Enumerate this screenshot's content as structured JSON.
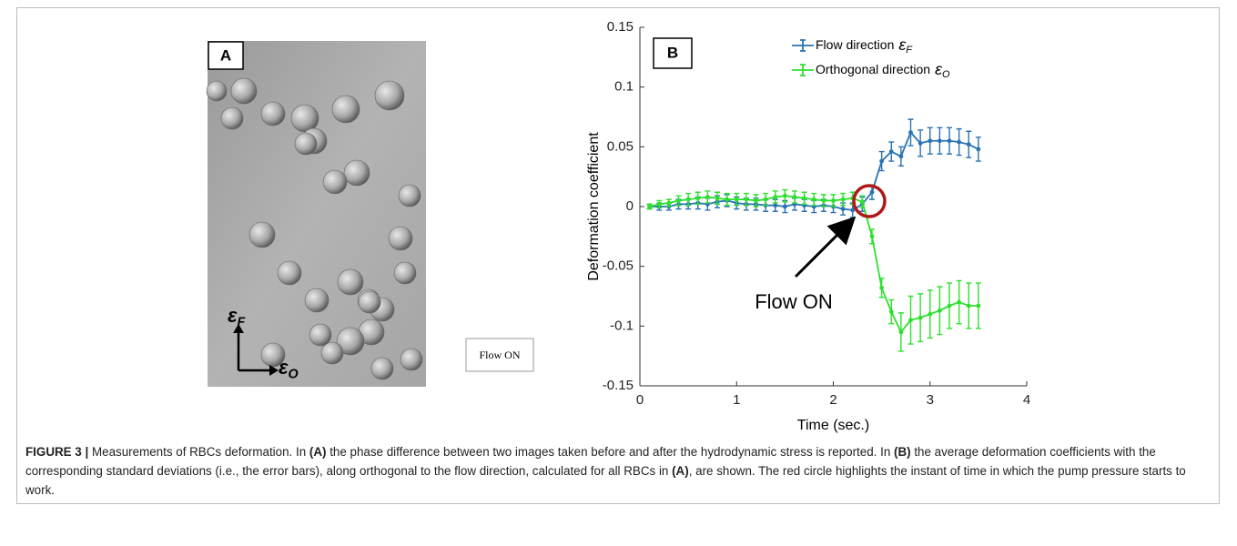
{
  "panel_a": {
    "label": "A",
    "annotation": "Flow ON",
    "axis_f": {
      "symbol": "ε",
      "subscript": "F"
    },
    "axis_o": {
      "symbol": "ε",
      "subscript": "O"
    }
  },
  "chart_data": {
    "type": "errorbar",
    "label": "B",
    "xlabel": "Time (sec.)",
    "ylabel": "Deformation coefficient",
    "xlim": [
      0,
      4
    ],
    "xticks": [
      0,
      1,
      2,
      3,
      4
    ],
    "ylim": [
      -0.15,
      0.15
    ],
    "yticks": [
      -0.15,
      -0.1,
      -0.05,
      0,
      0.05,
      0.1,
      0.15
    ],
    "legend": "top-right",
    "annotation": "Flow ON",
    "x": [
      0.1,
      0.2,
      0.3,
      0.4,
      0.5,
      0.6,
      0.7,
      0.8,
      0.9,
      1.0,
      1.1,
      1.2,
      1.3,
      1.4,
      1.5,
      1.6,
      1.7,
      1.8,
      1.9,
      2.0,
      2.1,
      2.2,
      2.3,
      2.4,
      2.5,
      2.6,
      2.7,
      2.8,
      2.9,
      3.0,
      3.1,
      3.2,
      3.3,
      3.4,
      3.5
    ],
    "series": [
      {
        "name": "Flow direction",
        "symbol": "ε",
        "subscript": "F",
        "color": "#2a72b5",
        "values": [
          0,
          0,
          0,
          0.002,
          0.002,
          0.003,
          0.002,
          0.004,
          0.005,
          0.003,
          0.002,
          0.002,
          0.001,
          0.001,
          0,
          0.002,
          0.001,
          0,
          0.001,
          0,
          -0.002,
          -0.003,
          0.002,
          0.012,
          0.038,
          0.046,
          0.042,
          0.062,
          0.053,
          0.055,
          0.055,
          0.055,
          0.054,
          0.052,
          0.048
        ],
        "errors": [
          0.002,
          0.003,
          0.003,
          0.004,
          0.004,
          0.005,
          0.005,
          0.005,
          0.005,
          0.005,
          0.005,
          0.005,
          0.005,
          0.005,
          0.005,
          0.005,
          0.005,
          0.005,
          0.005,
          0.005,
          0.005,
          0.006,
          0.006,
          0.006,
          0.008,
          0.008,
          0.008,
          0.011,
          0.011,
          0.011,
          0.011,
          0.011,
          0.011,
          0.011,
          0.01
        ]
      },
      {
        "name": "Orthogonal direction",
        "symbol": "ε",
        "subscript": "O",
        "color": "#2de02d",
        "values": [
          0,
          0.002,
          0.003,
          0.005,
          0.006,
          0.007,
          0.008,
          0.007,
          0.006,
          0.006,
          0.006,
          0.005,
          0.006,
          0.008,
          0.009,
          0.008,
          0.007,
          0.006,
          0.005,
          0.005,
          0.006,
          0.007,
          0.004,
          -0.025,
          -0.068,
          -0.088,
          -0.105,
          -0.095,
          -0.093,
          -0.09,
          -0.087,
          -0.083,
          -0.08,
          -0.083,
          -0.083
        ],
        "errors": [
          0.002,
          0.003,
          0.003,
          0.004,
          0.005,
          0.005,
          0.005,
          0.005,
          0.005,
          0.005,
          0.005,
          0.005,
          0.005,
          0.005,
          0.005,
          0.005,
          0.005,
          0.005,
          0.005,
          0.005,
          0.005,
          0.005,
          0.005,
          0.006,
          0.008,
          0.01,
          0.016,
          0.02,
          0.02,
          0.02,
          0.02,
          0.019,
          0.018,
          0.019,
          0.019
        ]
      }
    ]
  },
  "caption": {
    "label": "FIGURE 3 |",
    "segments": [
      "Measurements of RBCs deformation. In ",
      "(A)",
      " the phase difference between two images taken before and after the hydrodynamic stress is reported. In ",
      "(B)",
      " the average deformation coefficients with the corresponding standard deviations (i.e., the error bars), along orthogonal to the flow direction, calculated for all RBCs in ",
      "(A)",
      ", are shown. The red circle highlights the instant of time in which the pump pressure starts to work."
    ]
  }
}
